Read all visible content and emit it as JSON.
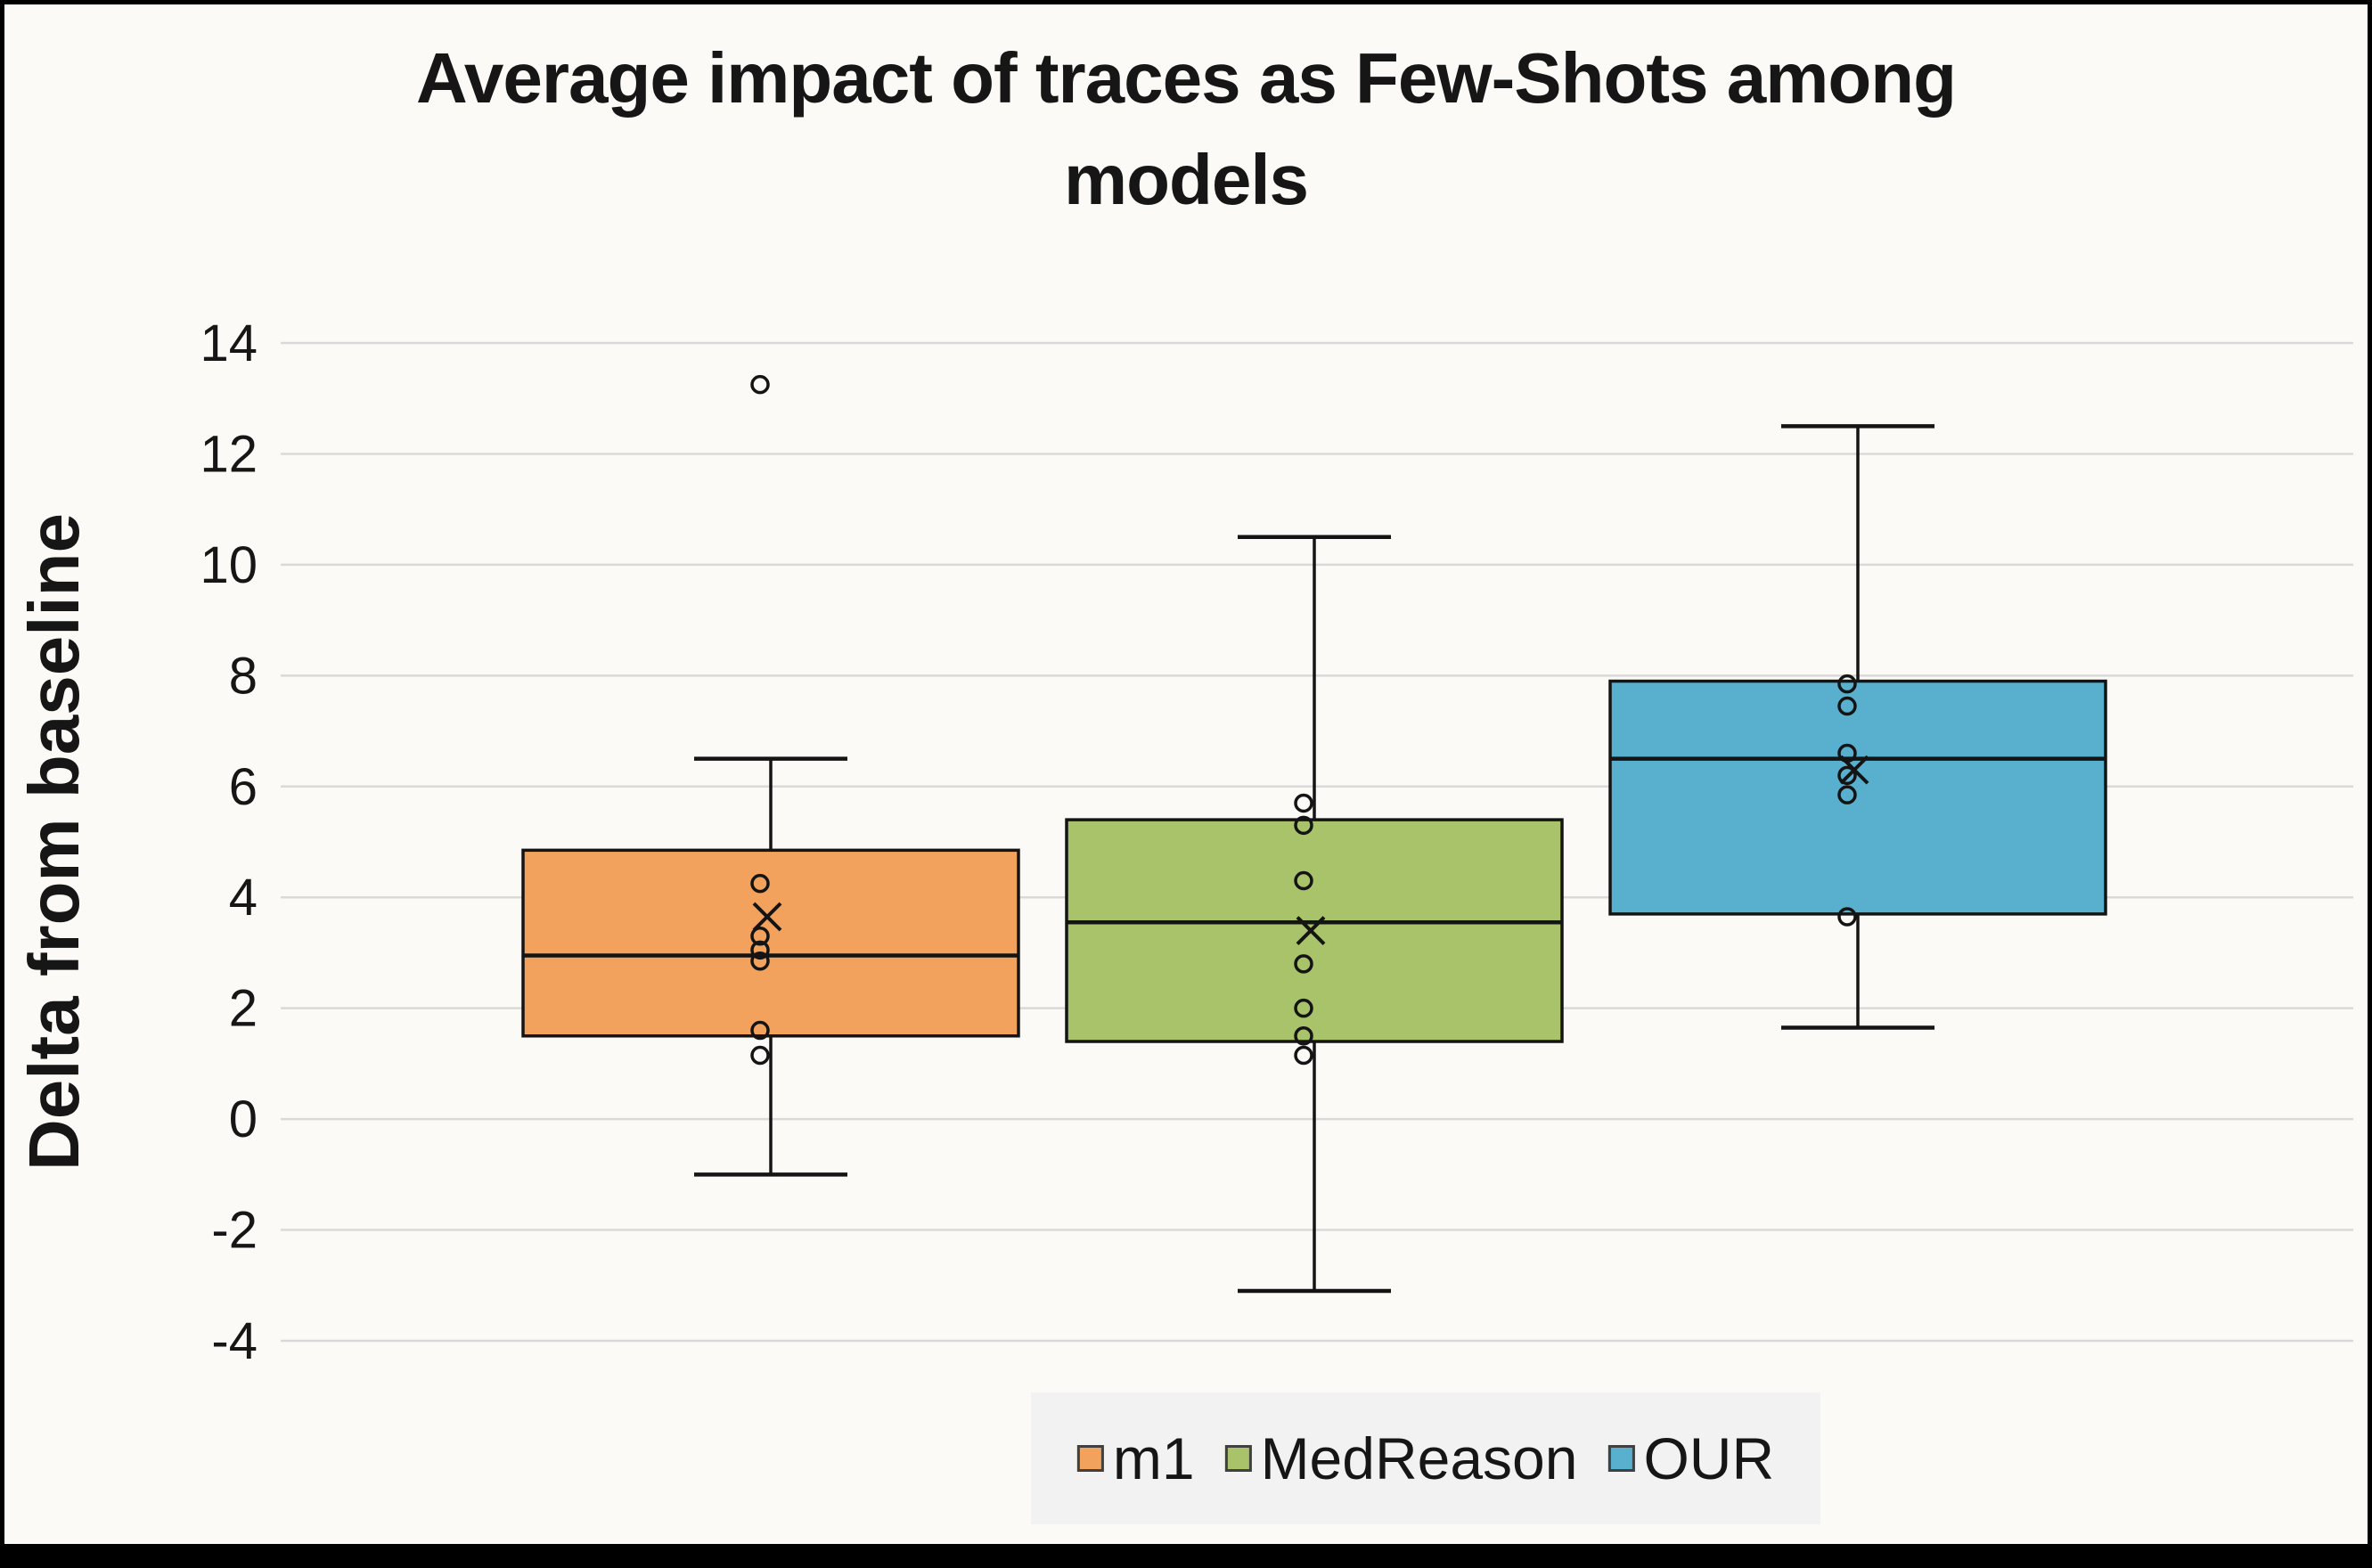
{
  "chart_data": {
    "type": "box",
    "title": "Average impact of traces as Few-Shots among models",
    "ylabel": "Delta from baseline",
    "ylim": [
      -4,
      14
    ],
    "yticks": [
      14,
      12,
      10,
      8,
      6,
      4,
      2,
      0,
      -2,
      -4
    ],
    "grid": true,
    "legend_position": "bottom",
    "background": "#FBFAF7",
    "gridline_color": "#D9D9D9",
    "series": [
      {
        "name": "m1",
        "color": "#F2A25D",
        "whisker_low": -1.0,
        "q1": 1.5,
        "median": 2.95,
        "q3": 4.85,
        "whisker_high": 6.5,
        "mean": 3.65,
        "outliers": [
          13.25
        ],
        "points": [
          4.25,
          3.3,
          3.05,
          2.85,
          1.6,
          1.15
        ]
      },
      {
        "name": "MedReason",
        "color": "#A9C36A",
        "whisker_low": -3.1,
        "q1": 1.4,
        "median": 3.55,
        "q3": 5.4,
        "whisker_high": 10.5,
        "mean": 3.4,
        "outliers": [],
        "points": [
          5.7,
          5.3,
          4.3,
          2.8,
          2.0,
          1.5,
          1.15
        ]
      },
      {
        "name": "OUR",
        "color": "#58B0CE",
        "whisker_low": 1.65,
        "q1": 3.7,
        "median": 6.5,
        "q3": 7.9,
        "whisker_high": 12.5,
        "mean": 6.3,
        "outliers": [],
        "points": [
          7.85,
          7.45,
          6.6,
          6.2,
          5.85,
          3.65
        ]
      }
    ]
  }
}
